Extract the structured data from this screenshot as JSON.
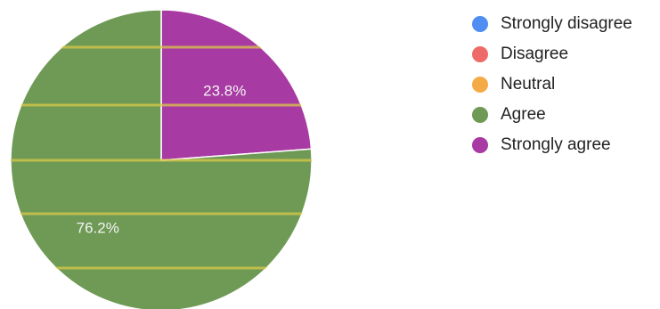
{
  "chart_data": {
    "type": "pie",
    "categories": [
      "Strongly disagree",
      "Disagree",
      "Neutral",
      "Agree",
      "Strongly agree"
    ],
    "values": [
      0,
      0,
      0,
      76.2,
      23.8
    ],
    "labels": [
      "",
      "",
      "",
      "76.2%",
      "23.8%"
    ],
    "colors": [
      "#4f8df2",
      "#ee6a68",
      "#f5aa48",
      "#6e9a55",
      "#a83aa3"
    ],
    "legend_position": "right",
    "title": ""
  }
}
